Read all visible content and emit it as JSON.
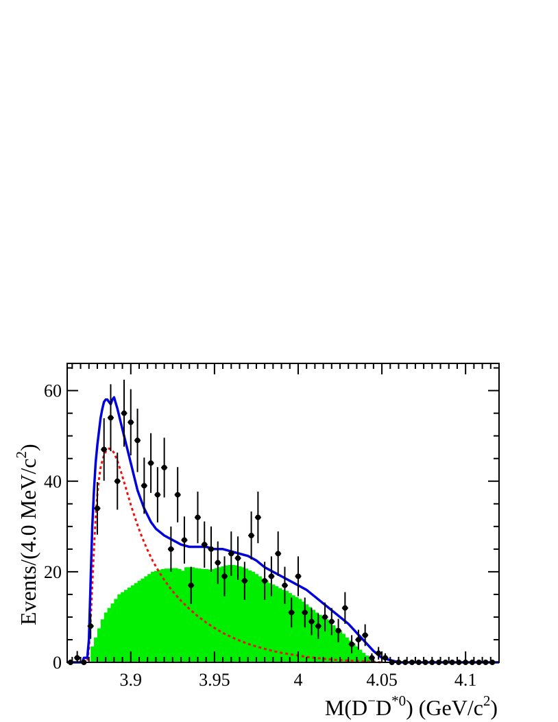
{
  "chart_data": {
    "type": "histogram",
    "xlabel": {
      "main": "M(D",
      "sup1": "−",
      "mid": "D",
      "sup2": "*0",
      "tail": ") (GeV/c",
      "sup3": "2",
      "end": ")"
    },
    "ylabel": {
      "main": "Events/(4.0 MeV/c",
      "sup": "2",
      "end": ")"
    },
    "xlim": [
      3.862,
      4.12
    ],
    "ylim": [
      0,
      66
    ],
    "x_ticks": [
      3.9,
      3.95,
      4,
      4.05,
      4.1
    ],
    "x_tick_labels": [
      "3.9",
      "3.95",
      "4",
      "4.05",
      "4.1"
    ],
    "y_ticks": [
      0,
      20,
      40,
      60
    ],
    "y_tick_labels": [
      "0",
      "20",
      "40",
      "60"
    ],
    "colors": {
      "data": "#000000",
      "fit": "#0000dd",
      "signal": "#ee1111",
      "background": "#00ee00"
    },
    "series": [
      {
        "kind": "data_points",
        "x": [
          3.864,
          3.868,
          3.872,
          3.876,
          3.88,
          3.884,
          3.888,
          3.892,
          3.896,
          3.9,
          3.904,
          3.908,
          3.912,
          3.916,
          3.92,
          3.924,
          3.928,
          3.932,
          3.936,
          3.94,
          3.944,
          3.948,
          3.952,
          3.956,
          3.96,
          3.964,
          3.968,
          3.972,
          3.976,
          3.98,
          3.984,
          3.988,
          3.992,
          3.996,
          4.0,
          4.004,
          4.008,
          4.012,
          4.016,
          4.02,
          4.024,
          4.028,
          4.032,
          4.036,
          4.04,
          4.044,
          4.048,
          4.052,
          4.056,
          4.06,
          4.064,
          4.068,
          4.072,
          4.076,
          4.08,
          4.084,
          4.088,
          4.092,
          4.096,
          4.1,
          4.104,
          4.108,
          4.112,
          4.116
        ],
        "y": [
          0,
          1,
          0,
          8,
          34,
          47,
          54,
          40,
          55,
          53,
          49,
          39,
          44,
          37,
          43,
          25,
          37,
          27,
          17,
          32,
          26,
          25,
          22,
          19,
          24,
          23,
          18,
          28,
          32,
          18,
          19,
          24,
          17,
          11,
          19,
          11,
          9,
          8,
          10,
          9,
          7,
          12,
          4,
          5,
          6,
          1,
          2,
          1,
          0,
          0,
          0,
          0,
          0,
          0,
          0,
          0,
          0,
          0,
          0,
          0,
          0,
          0,
          0,
          0
        ],
        "errors": [
          0,
          1.5,
          0,
          2.8,
          5.8,
          6.9,
          7.4,
          6.3,
          7.4,
          7.3,
          7.0,
          6.2,
          6.6,
          6.1,
          6.6,
          5.0,
          6.1,
          5.2,
          4.1,
          5.7,
          5.1,
          5.0,
          4.7,
          4.4,
          4.9,
          4.8,
          4.2,
          5.3,
          5.7,
          4.2,
          4.4,
          4.9,
          4.1,
          3.3,
          4.4,
          3.3,
          3.0,
          2.8,
          3.2,
          3.0,
          2.6,
          3.5,
          2.0,
          2.2,
          2.4,
          1.0,
          1.4,
          1.0,
          0,
          0,
          0,
          0,
          0,
          0,
          0,
          0,
          0,
          0,
          0,
          0,
          0,
          0,
          0,
          0
        ]
      },
      {
        "kind": "histogram_fill",
        "bin_width": 0.002,
        "x": [
          3.877,
          3.879,
          3.881,
          3.883,
          3.885,
          3.887,
          3.889,
          3.891,
          3.893,
          3.895,
          3.897,
          3.899,
          3.901,
          3.903,
          3.905,
          3.907,
          3.909,
          3.911,
          3.913,
          3.915,
          3.917,
          3.919,
          3.921,
          3.923,
          3.925,
          3.927,
          3.929,
          3.931,
          3.933,
          3.935,
          3.937,
          3.939,
          3.941,
          3.943,
          3.945,
          3.947,
          3.949,
          3.951,
          3.953,
          3.955,
          3.957,
          3.959,
          3.961,
          3.963,
          3.965,
          3.967,
          3.969,
          3.971,
          3.973,
          3.975,
          3.977,
          3.979,
          3.981,
          3.983,
          3.985,
          3.987,
          3.989,
          3.991,
          3.993,
          3.995,
          3.997,
          3.999,
          4.001,
          4.003,
          4.005,
          4.007,
          4.009,
          4.011,
          4.013,
          4.015,
          4.017,
          4.019,
          4.021,
          4.023,
          4.025,
          4.027,
          4.029,
          4.031,
          4.033,
          4.035,
          4.037,
          4.039,
          4.041,
          4.043,
          4.045
        ],
        "y": [
          3.5,
          5.5,
          7.5,
          9.5,
          11,
          12,
          13,
          14,
          15,
          15.5,
          16,
          16.5,
          17,
          17.5,
          18,
          18.5,
          19,
          19.5,
          20,
          20.2,
          20.4,
          20.6,
          20.7,
          20.7,
          20.8,
          20.8,
          20.6,
          20.2,
          21,
          21,
          21,
          20.8,
          20.7,
          20.6,
          20.6,
          20.5,
          20.6,
          20.8,
          21,
          21.2,
          21.4,
          21.5,
          21.5,
          21.4,
          21.2,
          21,
          20.7,
          20.3,
          20,
          19.5,
          19,
          18.5,
          18,
          17.5,
          17.2,
          16.8,
          16.4,
          16,
          15.8,
          15.3,
          14.8,
          14.4,
          14,
          13.4,
          12.8,
          12.2,
          11.6,
          11,
          10.5,
          10,
          9.5,
          8.8,
          8.2,
          7.6,
          7,
          6.3,
          5.5,
          4.8,
          4.2,
          3.5,
          2.8,
          2.1,
          1.5,
          0.9,
          0.4
        ]
      },
      {
        "kind": "curve",
        "x": [
          3.862,
          3.874,
          3.875,
          3.876,
          3.877,
          3.878,
          3.879,
          3.88,
          3.881,
          3.882,
          3.883,
          3.884,
          3.885,
          3.886,
          3.887,
          3.888,
          3.889,
          3.89,
          3.892,
          3.894,
          3.896,
          3.898,
          3.9,
          3.902,
          3.904,
          3.906,
          3.908,
          3.91,
          3.913,
          3.916,
          3.92,
          3.925,
          3.93,
          3.935,
          3.94,
          3.945,
          3.95,
          3.955,
          3.96,
          3.965,
          3.97,
          3.975,
          3.98,
          3.985,
          3.99,
          3.995,
          4.0,
          4.005,
          4.01,
          4.015,
          4.02,
          4.025,
          4.03,
          4.035,
          4.04,
          4.045,
          4.05
        ],
        "y": [
          0,
          0,
          3,
          9,
          17,
          25,
          32,
          37,
          40.5,
          43,
          44.5,
          45.7,
          46.5,
          47,
          47.2,
          47.1,
          46.8,
          46.2,
          44.5,
          42.3,
          39.8,
          37.3,
          34.8,
          32.5,
          30.3,
          28.3,
          26.5,
          24.8,
          22.5,
          20.5,
          18.2,
          15.7,
          13.6,
          11.8,
          10.2,
          8.8,
          7.6,
          6.5,
          5.6,
          4.8,
          4.1,
          3.5,
          3.0,
          2.5,
          2.1,
          1.8,
          1.5,
          1.2,
          1.0,
          0.8,
          0.6,
          0.5,
          0.4,
          0.3,
          0.2,
          0.1,
          0
        ]
      },
      {
        "kind": "curve",
        "x": [
          3.862,
          3.871,
          3.872,
          3.874,
          3.875,
          3.876,
          3.877,
          3.878,
          3.879,
          3.88,
          3.881,
          3.882,
          3.883,
          3.884,
          3.885,
          3.886,
          3.887,
          3.888,
          3.889,
          3.89,
          3.892,
          3.894,
          3.896,
          3.898,
          3.9,
          3.902,
          3.904,
          3.906,
          3.908,
          3.91,
          3.912,
          3.915,
          3.92,
          3.925,
          3.93,
          3.935,
          3.94,
          3.945,
          3.95,
          3.955,
          3.96,
          3.965,
          3.97,
          3.975,
          3.98,
          3.985,
          3.99,
          3.995,
          4.0,
          4.005,
          4.01,
          4.015,
          4.02,
          4.025,
          4.03,
          4.035,
          4.04,
          4.045,
          4.05,
          4.06,
          4.12
        ],
        "y": [
          0,
          0,
          1,
          1,
          5,
          18,
          30,
          38,
          44,
          48,
          51,
          54,
          56,
          57.5,
          58,
          58,
          57.5,
          57,
          58,
          58.5,
          56,
          53,
          50,
          47,
          44,
          41,
          38,
          36,
          34,
          32.5,
          31,
          29.5,
          28,
          27,
          26,
          25.5,
          25.5,
          25.5,
          25,
          25,
          24.5,
          24,
          23.5,
          22.5,
          21,
          20,
          19,
          18,
          17,
          16,
          14.5,
          13,
          11.5,
          10,
          8.5,
          6.5,
          4.5,
          2.5,
          1,
          0,
          0
        ]
      }
    ]
  }
}
